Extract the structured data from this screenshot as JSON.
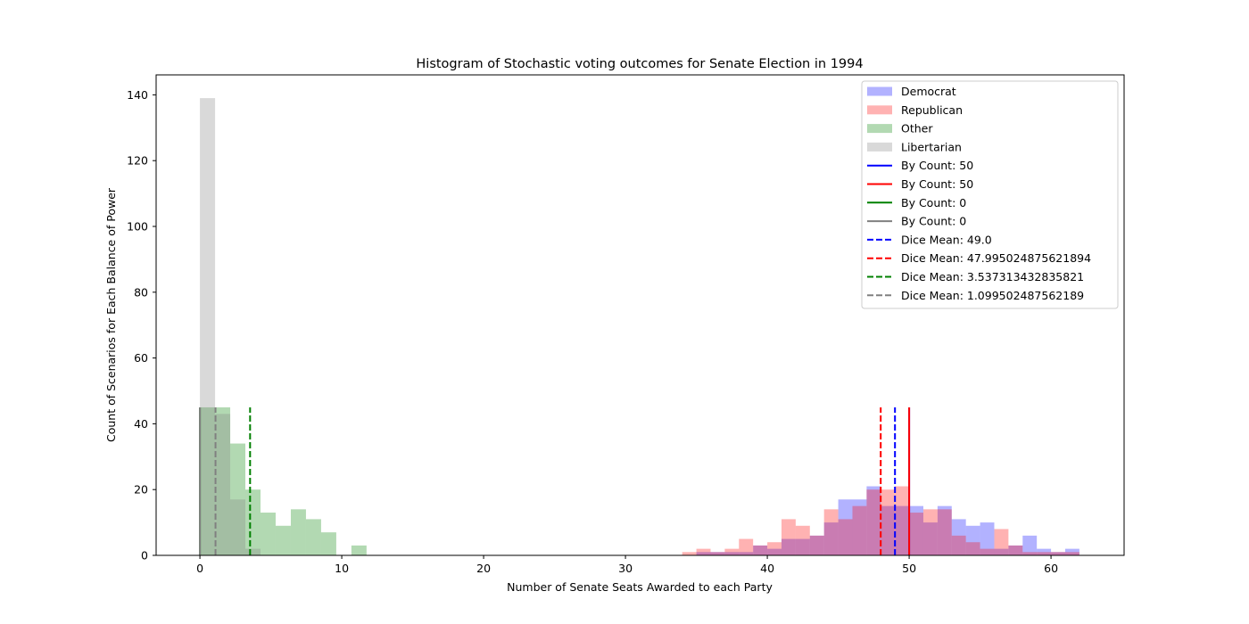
{
  "chart_data": {
    "type": "histogram",
    "title": "Histogram of Stochastic voting outcomes for Senate Election in 1994",
    "xlabel": "Number of Senate Seats Awarded to each Party",
    "ylabel": "Count of Scenarios for Each Balance of Power",
    "xlim": [
      -3.1,
      65.1
    ],
    "ylim": [
      0,
      146
    ],
    "x_ticks": [
      0,
      10,
      20,
      30,
      40,
      50,
      60
    ],
    "y_ticks": [
      0,
      20,
      40,
      60,
      80,
      100,
      120,
      140
    ],
    "legend_position": "upper right",
    "histograms": [
      {
        "name": "Democrat",
        "color": "#0000ff",
        "alpha": 0.3,
        "bin_width": 1.0,
        "bins": [
          [
            35,
            1
          ],
          [
            36,
            1
          ],
          [
            37,
            1
          ],
          [
            38,
            1
          ],
          [
            39,
            3
          ],
          [
            40,
            2
          ],
          [
            41,
            5
          ],
          [
            42,
            5
          ],
          [
            43,
            6
          ],
          [
            44,
            10
          ],
          [
            45,
            17
          ],
          [
            46,
            17
          ],
          [
            47,
            21
          ],
          [
            48,
            15
          ],
          [
            49,
            15
          ],
          [
            50,
            15
          ],
          [
            51,
            10
          ],
          [
            52,
            15
          ],
          [
            53,
            11
          ],
          [
            54,
            9
          ],
          [
            55,
            10
          ],
          [
            56,
            2
          ],
          [
            57,
            3
          ],
          [
            58,
            6
          ],
          [
            59,
            2
          ],
          [
            60,
            1
          ],
          [
            61,
            2
          ]
        ]
      },
      {
        "name": "Republican",
        "color": "#ff0000",
        "alpha": 0.3,
        "bin_width": 1.0,
        "bins": [
          [
            34,
            1
          ],
          [
            35,
            2
          ],
          [
            36,
            1
          ],
          [
            37,
            2
          ],
          [
            38,
            5
          ],
          [
            39,
            3
          ],
          [
            40,
            4
          ],
          [
            41,
            11
          ],
          [
            42,
            9
          ],
          [
            43,
            6
          ],
          [
            44,
            14
          ],
          [
            45,
            11
          ],
          [
            46,
            15
          ],
          [
            47,
            20
          ],
          [
            48,
            20
          ],
          [
            49,
            21
          ],
          [
            50,
            13
          ],
          [
            51,
            14
          ],
          [
            52,
            14
          ],
          [
            53,
            6
          ],
          [
            54,
            4
          ],
          [
            55,
            2
          ],
          [
            56,
            8
          ],
          [
            57,
            3
          ],
          [
            58,
            1
          ],
          [
            59,
            1
          ],
          [
            60,
            1
          ],
          [
            61,
            1
          ]
        ]
      },
      {
        "name": "Other",
        "color": "#008000",
        "alpha": 0.3,
        "bin_width": 1.068,
        "bins": [
          [
            0,
            45
          ],
          [
            1.068,
            45
          ],
          [
            2.136,
            34
          ],
          [
            3.204,
            20
          ],
          [
            4.272,
            13
          ],
          [
            5.34,
            9
          ],
          [
            6.408,
            14
          ],
          [
            7.476,
            11
          ],
          [
            8.544,
            7
          ],
          [
            9.612,
            0
          ],
          [
            10.68,
            3
          ]
        ]
      },
      {
        "name": "Libertarian",
        "color": "#808080",
        "alpha": 0.3,
        "bin_width": 1.068,
        "bins": [
          [
            0,
            139
          ],
          [
            1.068,
            43
          ],
          [
            2.136,
            17
          ],
          [
            3.204,
            2
          ]
        ]
      }
    ],
    "vlines": [
      {
        "label": "By Count: 50",
        "x": 50,
        "color": "#0000ff",
        "style": "solid",
        "ymax": 45
      },
      {
        "label": "By Count: 50",
        "x": 50,
        "color": "#ff0000",
        "style": "solid",
        "ymax": 45
      },
      {
        "label": "By Count: 0",
        "x": 0,
        "color": "#008000",
        "style": "solid",
        "ymax": 45
      },
      {
        "label": "By Count: 0",
        "x": 0,
        "color": "#808080",
        "style": "solid",
        "ymax": 45
      },
      {
        "label": "Dice Mean: 49.0",
        "x": 49.0,
        "color": "#0000ff",
        "style": "dashed",
        "ymax": 45
      },
      {
        "label": "Dice Mean: 47.995024875621894",
        "x": 47.995024875621894,
        "color": "#ff0000",
        "style": "dashed",
        "ymax": 45
      },
      {
        "label": "Dice Mean: 3.537313432835821",
        "x": 3.537313432835821,
        "color": "#008000",
        "style": "dashed",
        "ymax": 45
      },
      {
        "label": "Dice Mean: 1.099502487562189",
        "x": 1.099502487562189,
        "color": "#808080",
        "style": "dashed",
        "ymax": 45
      }
    ],
    "legend": [
      {
        "label": "Democrat",
        "kind": "patch",
        "color": "#0000ff",
        "alpha": 0.3
      },
      {
        "label": "Republican",
        "kind": "patch",
        "color": "#ff0000",
        "alpha": 0.3
      },
      {
        "label": "Other",
        "kind": "patch",
        "color": "#008000",
        "alpha": 0.3
      },
      {
        "label": "Libertarian",
        "kind": "patch",
        "color": "#808080",
        "alpha": 0.3
      },
      {
        "label": "By Count: 50",
        "kind": "line",
        "color": "#0000ff",
        "style": "solid"
      },
      {
        "label": "By Count: 50",
        "kind": "line",
        "color": "#ff0000",
        "style": "solid"
      },
      {
        "label": "By Count: 0",
        "kind": "line",
        "color": "#008000",
        "style": "solid"
      },
      {
        "label": "By Count: 0",
        "kind": "line",
        "color": "#808080",
        "style": "solid"
      },
      {
        "label": "Dice Mean: 49.0",
        "kind": "line",
        "color": "#0000ff",
        "style": "dashed"
      },
      {
        "label": "Dice Mean: 47.995024875621894",
        "kind": "line",
        "color": "#ff0000",
        "style": "dashed"
      },
      {
        "label": "Dice Mean: 3.537313432835821",
        "kind": "line",
        "color": "#008000",
        "style": "dashed"
      },
      {
        "label": "Dice Mean: 1.099502487562189",
        "kind": "line",
        "color": "#808080",
        "style": "dashed"
      }
    ]
  }
}
